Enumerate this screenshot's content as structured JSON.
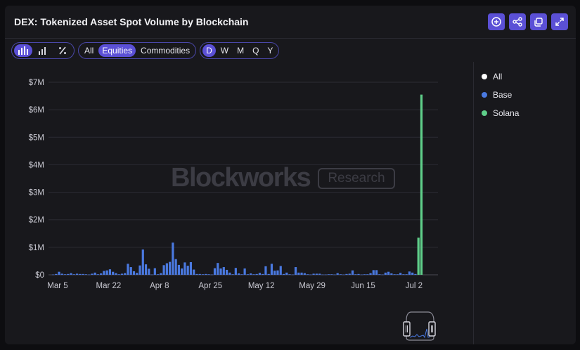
{
  "header": {
    "title": "DEX: Tokenized Asset Spot Volume by Blockchain",
    "icons": [
      "add-icon",
      "share-icon",
      "copy-icon",
      "expand-icon"
    ]
  },
  "toolbar": {
    "chart_types": [
      "bar-chart-icon",
      "stacked-bar-icon",
      "percent-icon"
    ],
    "asset_filters": [
      "All",
      "Equities",
      "Commodities"
    ],
    "asset_filter_active": "Equities",
    "intervals": [
      "D",
      "W",
      "M",
      "Q",
      "Y"
    ],
    "interval_active": "D"
  },
  "watermark": {
    "brand": "Blockworks",
    "tag": "Research"
  },
  "legend": [
    {
      "label": "All",
      "color": "#ffffff"
    },
    {
      "label": "Base",
      "color": "#4a79e0"
    },
    {
      "label": "Solana",
      "color": "#5fcf8a"
    }
  ],
  "chart_data": {
    "type": "bar",
    "x_tick_labels": [
      "Mar 5",
      "Mar 22",
      "Apr 8",
      "Apr 25",
      "May 12",
      "May 29",
      "Jun 15",
      "Jul 2"
    ],
    "y_tick_labels": [
      "$0",
      "$1M",
      "$2M",
      "$3M",
      "$4M",
      "$5M",
      "$6M",
      "$7M"
    ],
    "ylim": [
      0,
      7000000
    ],
    "grid": true,
    "legend_position": "right",
    "series": [
      {
        "name": "Base",
        "color": "#4a79e0",
        "values": [
          10000,
          30000,
          110000,
          40000,
          20000,
          30000,
          60000,
          20000,
          40000,
          30000,
          30000,
          20000,
          10000,
          40000,
          80000,
          20000,
          50000,
          140000,
          160000,
          200000,
          110000,
          60000,
          20000,
          40000,
          60000,
          400000,
          280000,
          130000,
          70000,
          340000,
          920000,
          380000,
          220000,
          10000,
          240000,
          20000,
          60000,
          350000,
          420000,
          470000,
          1170000,
          570000,
          360000,
          230000,
          450000,
          330000,
          460000,
          190000,
          30000,
          30000,
          20000,
          30000,
          20000,
          10000,
          240000,
          430000,
          230000,
          280000,
          180000,
          80000,
          20000,
          250000,
          50000,
          20000,
          230000,
          20000,
          50000,
          20000,
          30000,
          70000,
          30000,
          310000,
          30000,
          400000,
          150000,
          160000,
          320000,
          30000,
          80000,
          20000,
          10000,
          280000,
          80000,
          80000,
          60000,
          20000,
          10000,
          40000,
          40000,
          40000,
          10000,
          10000,
          20000,
          20000,
          10000,
          60000,
          20000,
          10000,
          30000,
          40000,
          160000,
          20000,
          30000,
          10000,
          20000,
          20000,
          60000,
          170000,
          170000,
          20000,
          10000,
          80000,
          110000,
          50000,
          20000,
          20000,
          70000,
          20000,
          20000,
          120000,
          80000,
          30000,
          0,
          0
        ]
      },
      {
        "name": "Solana",
        "color": "#5fcf8a",
        "values": [
          0,
          0,
          0,
          0,
          0,
          0,
          0,
          0,
          0,
          0,
          0,
          0,
          0,
          0,
          0,
          0,
          0,
          0,
          0,
          0,
          0,
          0,
          0,
          0,
          0,
          0,
          0,
          0,
          0,
          0,
          0,
          0,
          0,
          0,
          0,
          0,
          0,
          0,
          0,
          0,
          0,
          0,
          0,
          0,
          0,
          0,
          0,
          0,
          0,
          0,
          0,
          0,
          0,
          0,
          0,
          0,
          0,
          0,
          0,
          0,
          0,
          0,
          0,
          0,
          0,
          0,
          0,
          0,
          0,
          0,
          0,
          0,
          0,
          0,
          0,
          0,
          0,
          0,
          0,
          0,
          0,
          0,
          0,
          0,
          0,
          0,
          0,
          0,
          0,
          0,
          0,
          0,
          0,
          0,
          0,
          0,
          0,
          0,
          0,
          0,
          0,
          0,
          0,
          0,
          0,
          0,
          0,
          0,
          0,
          0,
          0,
          0,
          0,
          0,
          0,
          0,
          0,
          0,
          0,
          0,
          0,
          0,
          1350000,
          6550000
        ]
      }
    ]
  }
}
